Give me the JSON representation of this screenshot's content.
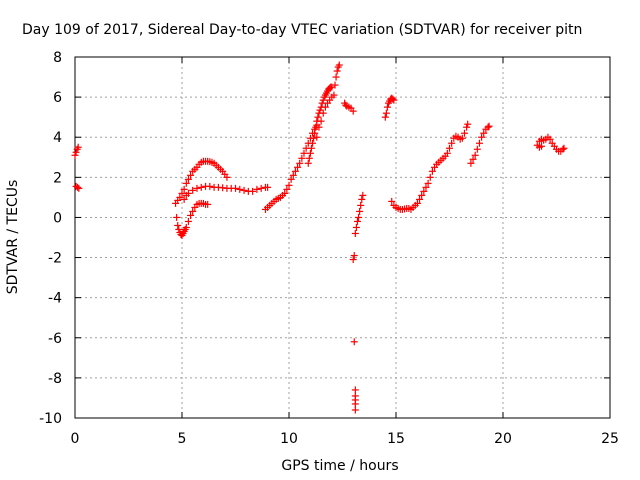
{
  "chart_data": {
    "type": "scatter",
    "title": "Day 109 of 2017, Sidereal Day-to-day VTEC variation (SDTVAR) for receiver pitn",
    "xlabel": "GPS time / hours",
    "ylabel": "SDTVAR / TECUs",
    "xlim": [
      0,
      25
    ],
    "ylim": [
      -10,
      8
    ],
    "xticks": [
      0,
      5,
      10,
      15,
      20,
      25
    ],
    "yticks": [
      -10,
      -8,
      -6,
      -4,
      -2,
      0,
      2,
      4,
      6,
      8
    ],
    "grid": true,
    "marker": "plus",
    "series": [
      {
        "name": "SDTVAR",
        "color": "#ff0000",
        "points": [
          [
            0.0,
            3.1
          ],
          [
            0.05,
            3.25
          ],
          [
            0.1,
            3.4
          ],
          [
            0.15,
            3.5
          ],
          [
            0.05,
            1.55
          ],
          [
            0.12,
            1.5
          ],
          [
            0.18,
            1.45
          ],
          [
            4.7,
            0.7
          ],
          [
            4.8,
            0.85
          ],
          [
            4.9,
            1.0
          ],
          [
            5.0,
            1.2
          ],
          [
            5.1,
            1.4
          ],
          [
            5.2,
            1.7
          ],
          [
            5.3,
            1.9
          ],
          [
            5.4,
            2.1
          ],
          [
            5.5,
            2.3
          ],
          [
            5.6,
            2.4
          ],
          [
            5.7,
            2.5
          ],
          [
            5.8,
            2.65
          ],
          [
            5.9,
            2.75
          ],
          [
            6.0,
            2.8
          ],
          [
            6.1,
            2.8
          ],
          [
            6.2,
            2.8
          ],
          [
            6.3,
            2.78
          ],
          [
            6.4,
            2.75
          ],
          [
            6.5,
            2.7
          ],
          [
            6.6,
            2.6
          ],
          [
            6.7,
            2.5
          ],
          [
            6.8,
            2.4
          ],
          [
            6.9,
            2.3
          ],
          [
            7.0,
            2.15
          ],
          [
            7.1,
            2.0
          ],
          [
            4.75,
            0.0
          ],
          [
            4.8,
            -0.4
          ],
          [
            4.85,
            -0.6
          ],
          [
            4.9,
            -0.75
          ],
          [
            4.95,
            -0.85
          ],
          [
            5.0,
            -0.9
          ],
          [
            5.05,
            -0.8
          ],
          [
            5.1,
            -0.7
          ],
          [
            5.15,
            -0.6
          ],
          [
            5.2,
            -0.5
          ],
          [
            5.3,
            -0.2
          ],
          [
            5.4,
            0.1
          ],
          [
            5.5,
            0.3
          ],
          [
            5.6,
            0.5
          ],
          [
            5.7,
            0.65
          ],
          [
            5.8,
            0.7
          ],
          [
            5.9,
            0.7
          ],
          [
            6.0,
            0.7
          ],
          [
            6.1,
            0.65
          ],
          [
            6.2,
            0.65
          ],
          [
            5.1,
            0.9
          ],
          [
            5.2,
            1.1
          ],
          [
            5.3,
            1.2
          ],
          [
            5.5,
            1.35
          ],
          [
            5.7,
            1.45
          ],
          [
            5.9,
            1.5
          ],
          [
            6.1,
            1.55
          ],
          [
            6.3,
            1.55
          ],
          [
            6.5,
            1.5
          ],
          [
            6.7,
            1.5
          ],
          [
            6.9,
            1.48
          ],
          [
            7.1,
            1.45
          ],
          [
            7.3,
            1.45
          ],
          [
            7.5,
            1.45
          ],
          [
            7.7,
            1.4
          ],
          [
            7.9,
            1.35
          ],
          [
            8.1,
            1.3
          ],
          [
            8.3,
            1.3
          ],
          [
            8.5,
            1.4
          ],
          [
            8.7,
            1.45
          ],
          [
            8.9,
            1.5
          ],
          [
            9.0,
            1.5
          ],
          [
            8.9,
            0.4
          ],
          [
            9.0,
            0.5
          ],
          [
            9.1,
            0.6
          ],
          [
            9.2,
            0.7
          ],
          [
            9.3,
            0.8
          ],
          [
            9.4,
            0.9
          ],
          [
            9.5,
            0.95
          ],
          [
            9.6,
            1.0
          ],
          [
            9.7,
            1.1
          ],
          [
            9.8,
            1.2
          ],
          [
            9.9,
            1.4
          ],
          [
            10.0,
            1.6
          ],
          [
            10.1,
            1.9
          ],
          [
            10.2,
            2.1
          ],
          [
            10.3,
            2.3
          ],
          [
            10.4,
            2.5
          ],
          [
            10.5,
            2.7
          ],
          [
            10.6,
            2.95
          ],
          [
            10.7,
            3.2
          ],
          [
            10.8,
            3.45
          ],
          [
            10.9,
            3.7
          ],
          [
            11.0,
            3.95
          ],
          [
            11.1,
            4.2
          ],
          [
            11.2,
            4.4
          ],
          [
            11.3,
            4.6
          ],
          [
            10.9,
            2.7
          ],
          [
            10.95,
            2.95
          ],
          [
            11.0,
            3.2
          ],
          [
            11.05,
            3.45
          ],
          [
            11.1,
            3.7
          ],
          [
            11.15,
            3.95
          ],
          [
            11.2,
            4.2
          ],
          [
            11.25,
            4.5
          ],
          [
            11.3,
            4.8
          ],
          [
            11.35,
            5.0
          ],
          [
            11.4,
            5.2
          ],
          [
            11.45,
            5.35
          ],
          [
            11.5,
            5.5
          ],
          [
            11.55,
            5.7
          ],
          [
            11.6,
            5.85
          ],
          [
            11.65,
            6.0
          ],
          [
            11.7,
            6.1
          ],
          [
            11.75,
            6.2
          ],
          [
            11.8,
            6.3
          ],
          [
            11.85,
            6.4
          ],
          [
            11.9,
            6.45
          ],
          [
            11.95,
            6.5
          ],
          [
            12.0,
            6.5
          ],
          [
            11.3,
            4.0
          ],
          [
            11.4,
            4.5
          ],
          [
            11.5,
            4.8
          ],
          [
            11.6,
            5.2
          ],
          [
            11.7,
            5.5
          ],
          [
            11.8,
            5.7
          ],
          [
            11.9,
            5.85
          ],
          [
            12.0,
            6.0
          ],
          [
            12.1,
            6.1
          ],
          [
            12.15,
            6.6
          ],
          [
            12.2,
            7.0
          ],
          [
            12.25,
            7.3
          ],
          [
            12.3,
            7.5
          ],
          [
            12.35,
            7.6
          ],
          [
            12.6,
            5.7
          ],
          [
            12.65,
            5.6
          ],
          [
            12.7,
            5.55
          ],
          [
            12.8,
            5.5
          ],
          [
            12.9,
            5.45
          ],
          [
            13.0,
            5.3
          ],
          [
            13.0,
            -2.1
          ],
          [
            13.05,
            -1.9
          ],
          [
            13.1,
            -0.8
          ],
          [
            13.15,
            -0.5
          ],
          [
            13.2,
            -0.2
          ],
          [
            13.25,
            0.0
          ],
          [
            13.3,
            0.3
          ],
          [
            13.35,
            0.6
          ],
          [
            13.4,
            0.9
          ],
          [
            13.45,
            1.1
          ],
          [
            13.05,
            -6.2
          ],
          [
            13.1,
            -8.6
          ],
          [
            13.1,
            -8.9
          ],
          [
            13.1,
            -9.1
          ],
          [
            13.1,
            -9.3
          ],
          [
            13.1,
            -9.6
          ],
          [
            14.5,
            5.0
          ],
          [
            14.55,
            5.2
          ],
          [
            14.6,
            5.5
          ],
          [
            14.65,
            5.7
          ],
          [
            14.7,
            5.8
          ],
          [
            14.75,
            5.9
          ],
          [
            14.8,
            5.95
          ],
          [
            14.85,
            5.9
          ],
          [
            14.9,
            5.85
          ],
          [
            14.8,
            0.8
          ],
          [
            14.9,
            0.6
          ],
          [
            15.0,
            0.5
          ],
          [
            15.1,
            0.45
          ],
          [
            15.2,
            0.4
          ],
          [
            15.3,
            0.4
          ],
          [
            15.4,
            0.42
          ],
          [
            15.5,
            0.45
          ],
          [
            15.6,
            0.45
          ],
          [
            15.7,
            0.4
          ],
          [
            15.8,
            0.5
          ],
          [
            15.9,
            0.6
          ],
          [
            16.0,
            0.7
          ],
          [
            16.1,
            0.9
          ],
          [
            16.2,
            1.1
          ],
          [
            16.3,
            1.3
          ],
          [
            16.4,
            1.5
          ],
          [
            16.5,
            1.7
          ],
          [
            16.6,
            2.0
          ],
          [
            16.7,
            2.3
          ],
          [
            16.8,
            2.5
          ],
          [
            16.9,
            2.65
          ],
          [
            17.0,
            2.75
          ],
          [
            17.1,
            2.85
          ],
          [
            17.2,
            2.95
          ],
          [
            17.3,
            3.05
          ],
          [
            17.4,
            3.2
          ],
          [
            17.5,
            3.45
          ],
          [
            17.6,
            3.7
          ],
          [
            17.7,
            3.95
          ],
          [
            17.8,
            4.05
          ],
          [
            17.9,
            4.0
          ],
          [
            18.0,
            3.9
          ],
          [
            18.1,
            3.95
          ],
          [
            18.2,
            4.2
          ],
          [
            18.3,
            4.5
          ],
          [
            18.35,
            4.65
          ],
          [
            18.5,
            2.7
          ],
          [
            18.6,
            2.9
          ],
          [
            18.7,
            3.1
          ],
          [
            18.8,
            3.4
          ],
          [
            18.9,
            3.7
          ],
          [
            19.0,
            4.0
          ],
          [
            19.1,
            4.2
          ],
          [
            19.2,
            4.4
          ],
          [
            19.3,
            4.5
          ],
          [
            19.35,
            4.55
          ],
          [
            21.6,
            3.6
          ],
          [
            21.7,
            3.8
          ],
          [
            21.8,
            3.9
          ],
          [
            21.9,
            3.85
          ],
          [
            22.0,
            3.9
          ],
          [
            22.1,
            4.0
          ],
          [
            22.2,
            3.9
          ],
          [
            22.3,
            3.7
          ],
          [
            22.4,
            3.55
          ],
          [
            22.5,
            3.4
          ],
          [
            22.6,
            3.3
          ],
          [
            22.7,
            3.3
          ],
          [
            22.8,
            3.4
          ],
          [
            22.85,
            3.45
          ],
          [
            21.7,
            3.5
          ],
          [
            21.8,
            3.55
          ]
        ]
      }
    ]
  }
}
